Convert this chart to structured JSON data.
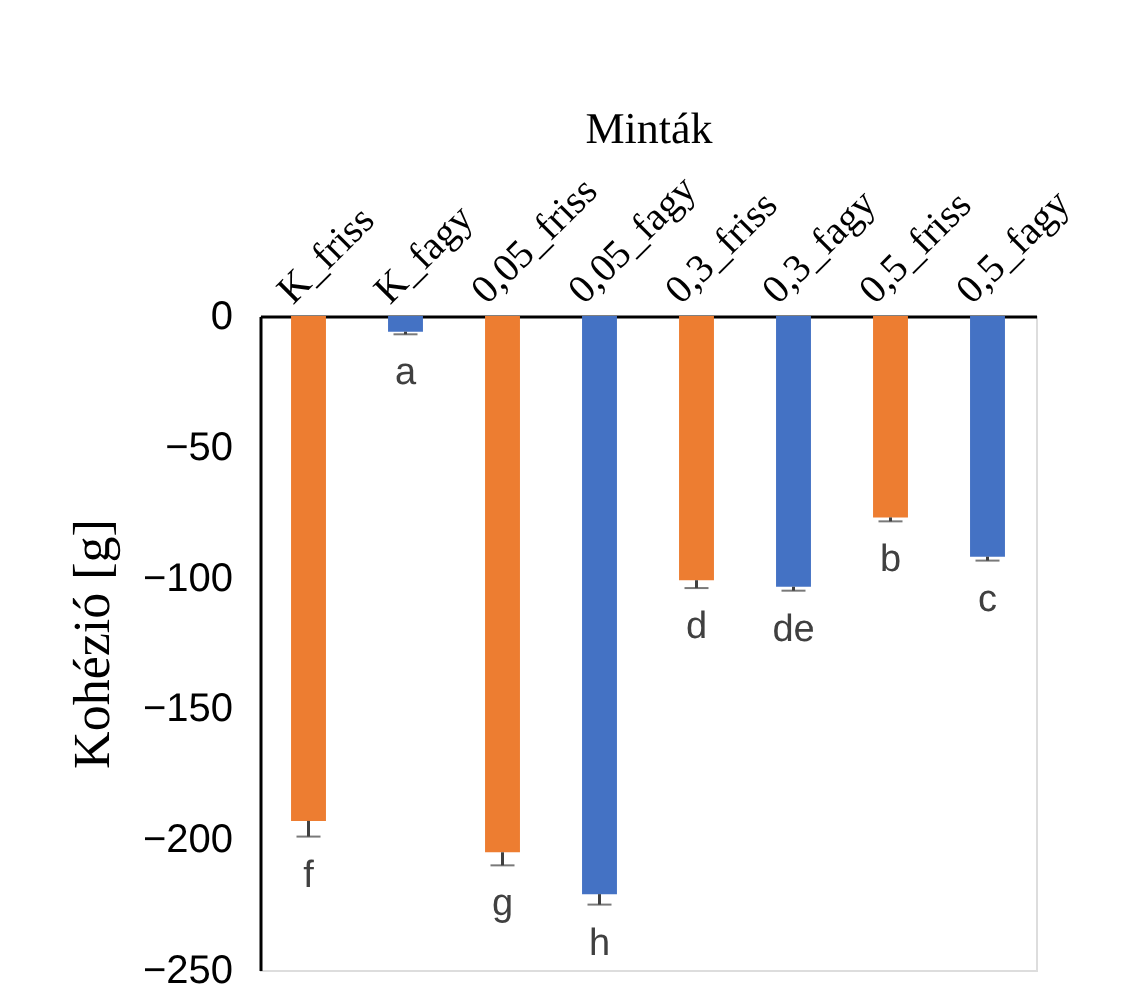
{
  "chart_data": {
    "type": "bar",
    "xlabel": "Minták",
    "ylabel": "Kohézió [g]",
    "categories": [
      "K_friss",
      "K_fagy",
      "0,05_friss",
      "0,05_fagy",
      "0,3_friss",
      "0,3_fagy",
      "0,5_friss",
      "0,5_fagy"
    ],
    "values": [
      -193,
      -6,
      -205,
      -221,
      -101,
      -103.5,
      -77,
      -92
    ],
    "colors": [
      "#ed7d31",
      "#4472c4",
      "#ed7d31",
      "#4472c4",
      "#ed7d31",
      "#4472c4",
      "#ed7d31",
      "#4472c4"
    ],
    "errors": [
      [
        -199,
        -193
      ],
      [
        -7,
        -6
      ],
      [
        -210,
        -205
      ],
      [
        -225,
        -221
      ],
      [
        -104,
        -101
      ],
      [
        -105,
        -103.5
      ],
      [
        -78.5,
        -77
      ],
      [
        -93.5,
        -92
      ]
    ],
    "ylim": [
      -250,
      0
    ],
    "yticks": [
      -250,
      -200,
      -150,
      -100,
      -50,
      0
    ],
    "grid": false,
    "annotations": [
      "f",
      "a",
      "g",
      "h",
      "d",
      "de",
      "b",
      "c"
    ]
  }
}
